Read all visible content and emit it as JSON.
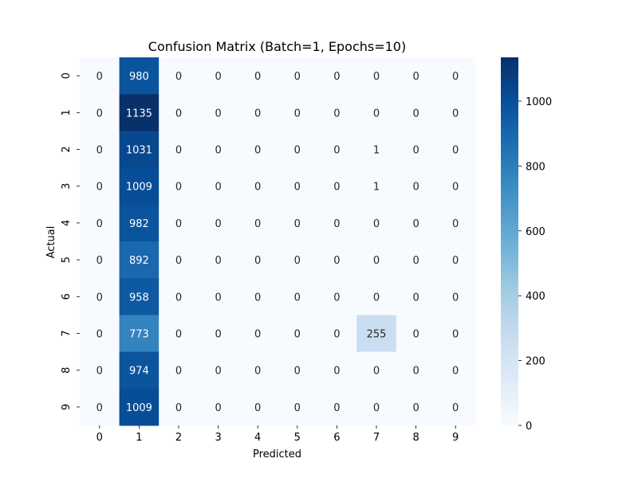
{
  "chart_data": {
    "type": "heatmap",
    "title": "Confusion Matrix (Batch=1, Epochs=10)",
    "xlabel": "Predicted",
    "ylabel": "Actual",
    "x_categories": [
      "0",
      "1",
      "2",
      "3",
      "4",
      "5",
      "6",
      "7",
      "8",
      "9"
    ],
    "y_categories": [
      "0",
      "1",
      "2",
      "3",
      "4",
      "5",
      "6",
      "7",
      "8",
      "9"
    ],
    "values": [
      [
        0,
        980,
        0,
        0,
        0,
        0,
        0,
        0,
        0,
        0
      ],
      [
        0,
        1135,
        0,
        0,
        0,
        0,
        0,
        0,
        0,
        0
      ],
      [
        0,
        1031,
        0,
        0,
        0,
        0,
        0,
        1,
        0,
        0
      ],
      [
        0,
        1009,
        0,
        0,
        0,
        0,
        0,
        1,
        0,
        0
      ],
      [
        0,
        982,
        0,
        0,
        0,
        0,
        0,
        0,
        0,
        0
      ],
      [
        0,
        892,
        0,
        0,
        0,
        0,
        0,
        0,
        0,
        0
      ],
      [
        0,
        958,
        0,
        0,
        0,
        0,
        0,
        0,
        0,
        0
      ],
      [
        0,
        773,
        0,
        0,
        0,
        0,
        0,
        255,
        0,
        0
      ],
      [
        0,
        974,
        0,
        0,
        0,
        0,
        0,
        0,
        0,
        0
      ],
      [
        0,
        1009,
        0,
        0,
        0,
        0,
        0,
        0,
        0,
        0
      ]
    ],
    "colormap": "Blues",
    "colorbar": {
      "min": 0,
      "max": 1135,
      "ticks": [
        0,
        200,
        400,
        600,
        800,
        1000
      ]
    },
    "grid": false,
    "annotations": true
  }
}
